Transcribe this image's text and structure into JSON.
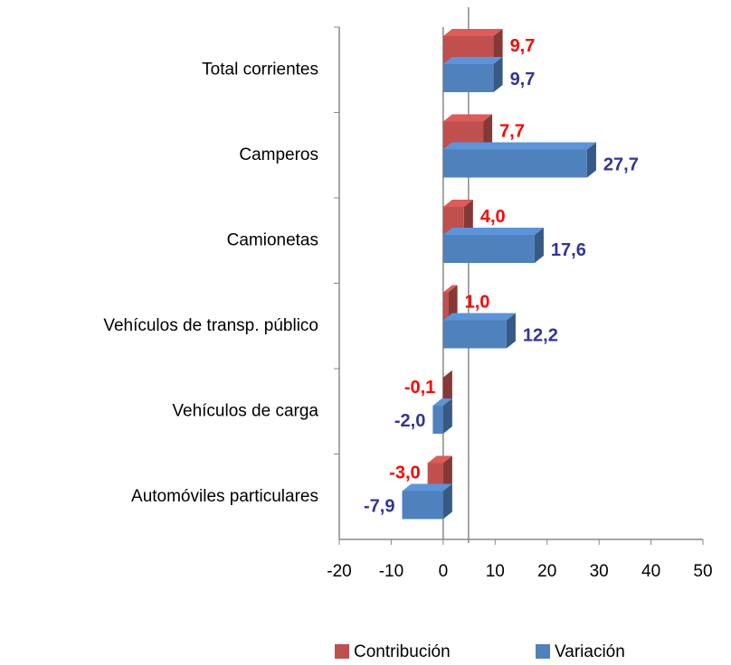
{
  "chart_data": {
    "type": "bar3d_horizontal",
    "categories": [
      "Total corrientes",
      "Camperos",
      "Camionetas",
      "Vehículos de transp. público",
      "Vehículos de carga",
      "Automóviles particulares"
    ],
    "series": [
      {
        "name": "Contribución",
        "color": "#c0504d",
        "label_color": "#ff0000",
        "values": [
          9.7,
          7.7,
          4.0,
          1.0,
          -0.1,
          -3.0
        ],
        "value_labels": [
          "9,7",
          "7,7",
          "4,0",
          "1,0",
          "-0,1",
          "-3,0"
        ]
      },
      {
        "name": "Variación",
        "color": "#4f81bd",
        "label_color": "#333399",
        "values": [
          9.7,
          27.7,
          17.6,
          12.2,
          -2.0,
          -7.9
        ],
        "value_labels": [
          "9,7",
          "27,7",
          "17,6",
          "12,2",
          "-2,0",
          "-7,9"
        ]
      }
    ],
    "xlim": [
      -20,
      50
    ],
    "xticks": [
      -20,
      -10,
      0,
      10,
      20,
      30,
      40,
      50
    ],
    "legend": "bottom"
  }
}
